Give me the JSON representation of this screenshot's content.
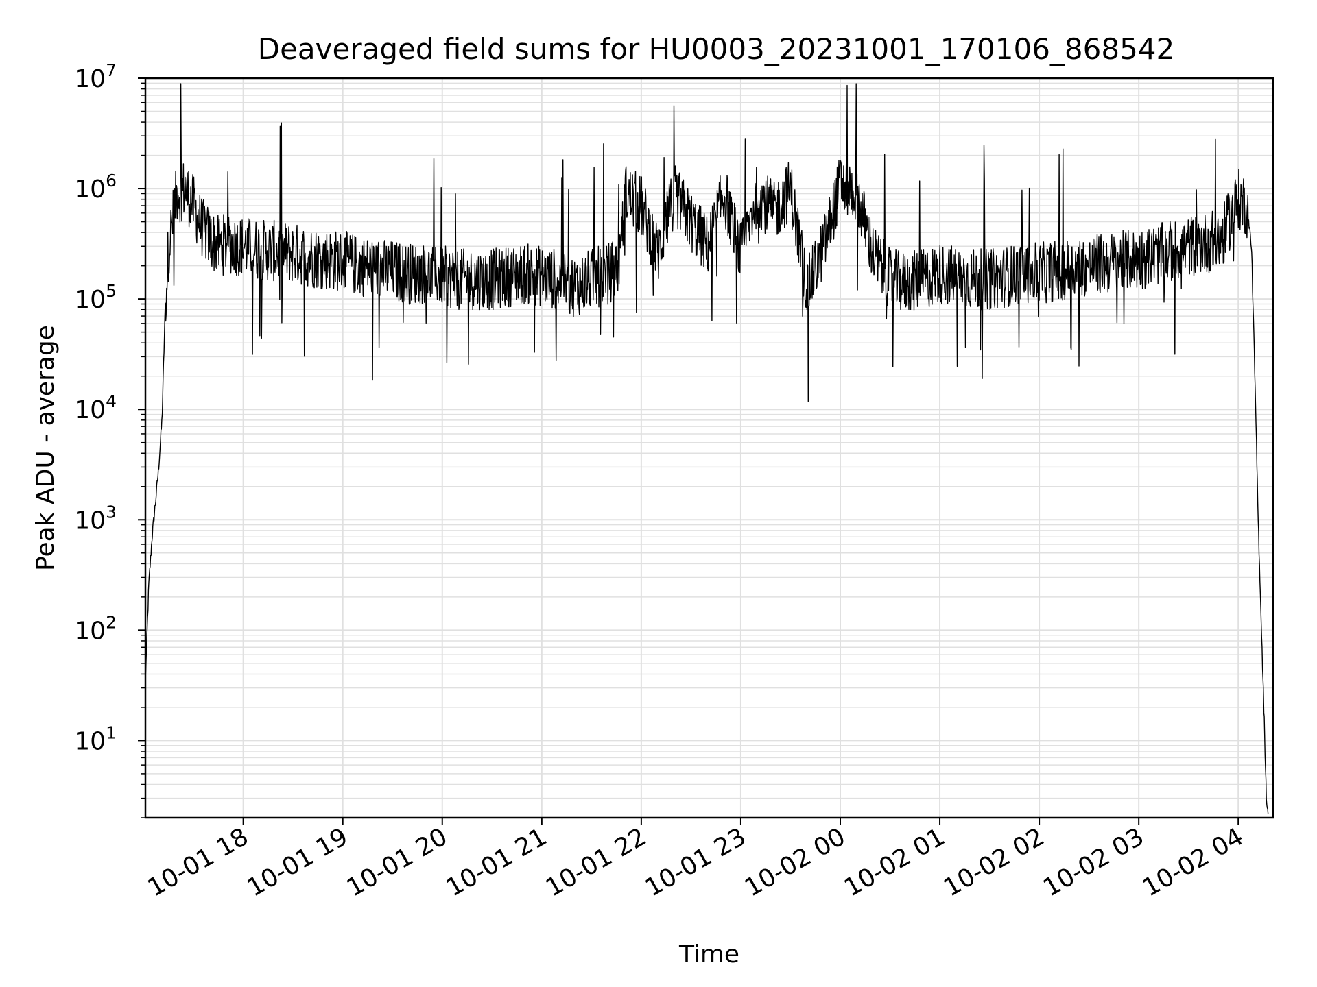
{
  "chart_data": {
    "type": "line",
    "title": "Deaveraged field sums for HU0003_20231001_170106_868542",
    "xlabel": "Time",
    "ylabel": "Peak ADU - average",
    "y_scale": "log",
    "ylim": [
      2,
      10000000
    ],
    "xlim": [
      "2023-10-01 17:01",
      "2023-10-02 04:21"
    ],
    "grid": true,
    "line_color": "#000000",
    "grid_color": "#e0e0e0",
    "x_ticks": [
      "10-01 18",
      "10-01 19",
      "10-01 20",
      "10-01 21",
      "10-01 22",
      "10-01 23",
      "10-02 00",
      "10-02 01",
      "10-02 02",
      "10-02 03",
      "10-02 04"
    ],
    "y_ticks": [
      {
        "base": "10",
        "exp": "1"
      },
      {
        "base": "10",
        "exp": "2"
      },
      {
        "base": "10",
        "exp": "3"
      },
      {
        "base": "10",
        "exp": "4"
      },
      {
        "base": "10",
        "exp": "5"
      },
      {
        "base": "10",
        "exp": "6"
      },
      {
        "base": "10",
        "exp": "7"
      }
    ],
    "series": [
      {
        "x": [
          "2023-10-01 17:01",
          "2023-10-01 17:03",
          "2023-10-01 17:05",
          "2023-10-01 17:07",
          "2023-10-01 17:09",
          "2023-10-01 17:11",
          "2023-10-01 17:13",
          "2023-10-01 17:15",
          "2023-10-01 17:20",
          "2023-10-01 17:25",
          "2023-10-01 17:30",
          "2023-10-01 17:35",
          "2023-10-01 17:40",
          "2023-10-01 17:45",
          "2023-10-01 17:50",
          "2023-10-01 18:00",
          "2023-10-01 18:10",
          "2023-10-01 18:20",
          "2023-10-01 18:30",
          "2023-10-01 18:40",
          "2023-10-01 18:50",
          "2023-10-01 19:00",
          "2023-10-01 19:10",
          "2023-10-01 19:20",
          "2023-10-01 19:30",
          "2023-10-01 19:40",
          "2023-10-01 19:50",
          "2023-10-01 20:00",
          "2023-10-01 20:10",
          "2023-10-01 20:20",
          "2023-10-01 20:30",
          "2023-10-01 20:40",
          "2023-10-01 20:50",
          "2023-10-01 21:00",
          "2023-10-01 21:10",
          "2023-10-01 21:20",
          "2023-10-01 21:30",
          "2023-10-01 21:40",
          "2023-10-01 21:47",
          "2023-10-01 21:50",
          "2023-10-01 22:00",
          "2023-10-01 22:10",
          "2023-10-01 22:20",
          "2023-10-01 22:30",
          "2023-10-01 22:40",
          "2023-10-01 22:50",
          "2023-10-01 23:00",
          "2023-10-01 23:10",
          "2023-10-01 23:20",
          "2023-10-01 23:30",
          "2023-10-01 23:40",
          "2023-10-01 23:50",
          "2023-10-02 00:00",
          "2023-10-02 00:10",
          "2023-10-02 00:20",
          "2023-10-02 00:30",
          "2023-10-02 00:40",
          "2023-10-02 00:50",
          "2023-10-02 01:00",
          "2023-10-02 01:10",
          "2023-10-02 01:20",
          "2023-10-02 01:30",
          "2023-10-02 01:40",
          "2023-10-02 01:50",
          "2023-10-02 02:00",
          "2023-10-02 02:10",
          "2023-10-02 02:20",
          "2023-10-02 02:30",
          "2023-10-02 02:40",
          "2023-10-02 02:50",
          "2023-10-02 03:00",
          "2023-10-02 03:10",
          "2023-10-02 03:20",
          "2023-10-02 03:30",
          "2023-10-02 03:40",
          "2023-10-02 03:50",
          "2023-10-02 04:00",
          "2023-10-02 04:05",
          "2023-10-02 04:08",
          "2023-10-02 04:10",
          "2023-10-02 04:12",
          "2023-10-02 04:14",
          "2023-10-02 04:16",
          "2023-10-02 04:17",
          "2023-10-02 04:18"
        ],
        "y": [
          35,
          250,
          700,
          1400,
          3000,
          8000,
          90000,
          300000,
          900000,
          1000000,
          700000,
          450000,
          350000,
          300000,
          320000,
          300000,
          280000,
          270000,
          260000,
          240000,
          230000,
          220000,
          200000,
          190000,
          180000,
          170000,
          170000,
          160000,
          150000,
          150000,
          150000,
          160000,
          170000,
          160000,
          150000,
          130000,
          150000,
          170000,
          200000,
          900000,
          700000,
          250000,
          900000,
          500000,
          300000,
          900000,
          250000,
          900000,
          600000,
          1000000,
          120000,
          300000,
          1100000,
          900000,
          250000,
          150000,
          140000,
          150000,
          170000,
          160000,
          150000,
          150000,
          160000,
          170000,
          170000,
          180000,
          190000,
          200000,
          210000,
          220000,
          230000,
          250000,
          270000,
          300000,
          320000,
          350000,
          800000,
          700000,
          300000,
          20000,
          1000,
          100,
          10,
          3,
          2
        ]
      }
    ]
  }
}
